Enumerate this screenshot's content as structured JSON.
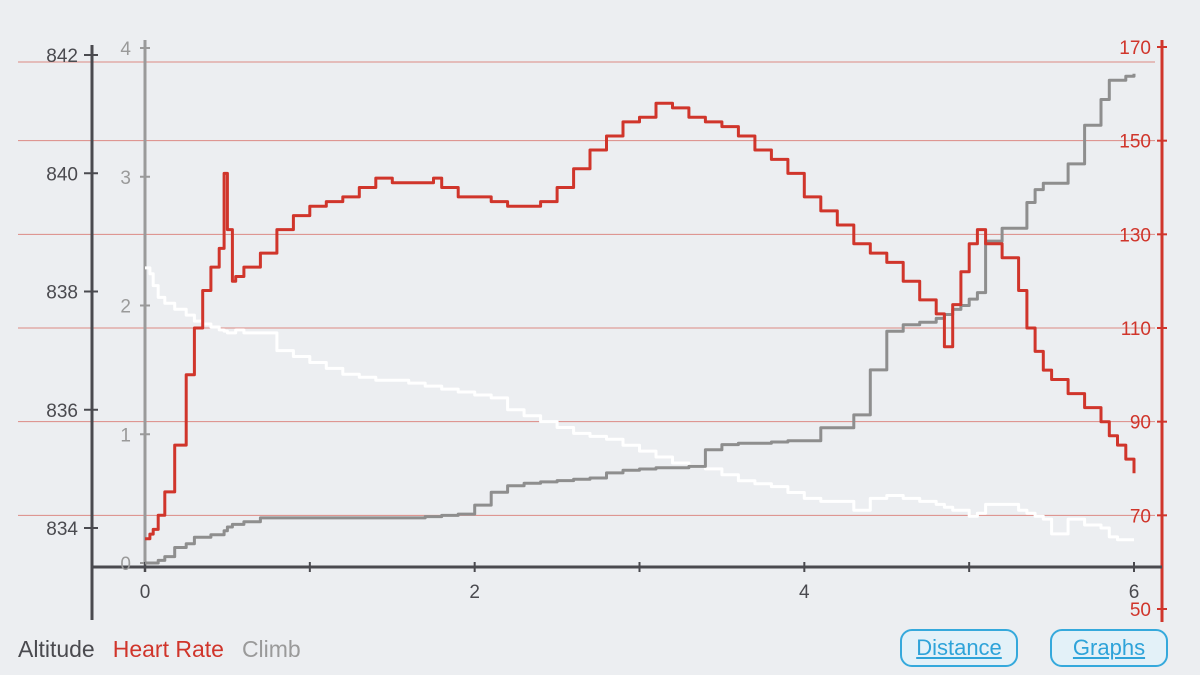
{
  "legend": {
    "altitude": "Altitude",
    "heart_rate": "Heart Rate",
    "climb": "Climb"
  },
  "buttons": {
    "distance": "Distance",
    "graphs": "Graphs"
  },
  "colors": {
    "background": "#eceef1",
    "altitude": "#ffffff",
    "heart_rate": "#d0352b",
    "climb": "#8e8e8e",
    "axis_left": "#4a4a4f",
    "axis_climb": "#9a9a9a",
    "grid": "#dc8a84",
    "button": "#2ea3d9"
  },
  "chart_data": {
    "type": "line",
    "x": [
      0,
      0.03,
      0.05,
      0.08,
      0.12,
      0.18,
      0.25,
      0.3,
      0.35,
      0.4,
      0.45,
      0.48,
      0.5,
      0.53,
      0.55,
      0.6,
      0.7,
      0.8,
      0.9,
      1.0,
      1.1,
      1.2,
      1.3,
      1.4,
      1.5,
      1.6,
      1.7,
      1.75,
      1.8,
      1.9,
      2.0,
      2.1,
      2.2,
      2.3,
      2.4,
      2.5,
      2.6,
      2.7,
      2.8,
      2.9,
      3.0,
      3.1,
      3.2,
      3.3,
      3.4,
      3.5,
      3.6,
      3.7,
      3.8,
      3.9,
      4.0,
      4.1,
      4.2,
      4.3,
      4.4,
      4.5,
      4.6,
      4.7,
      4.8,
      4.85,
      4.9,
      4.95,
      5.0,
      5.05,
      5.1,
      5.2,
      5.3,
      5.35,
      5.4,
      5.45,
      5.5,
      5.6,
      5.7,
      5.8,
      5.85,
      5.9,
      5.95,
      6.0
    ],
    "xlim": [
      0,
      6
    ],
    "x_ticks": [
      "0",
      "2",
      "4",
      "6"
    ],
    "series": [
      {
        "name": "Altitude",
        "axis": "left",
        "ylim": [
          833,
          842.3
        ],
        "y_ticks": [
          "834",
          "836",
          "838",
          "840",
          "842"
        ],
        "values": [
          838.4,
          838.3,
          838.1,
          837.9,
          837.8,
          837.7,
          837.6,
          837.5,
          837.45,
          837.4,
          837.35,
          837.33,
          837.3,
          837.3,
          837.35,
          837.3,
          837.3,
          837.0,
          836.9,
          836.8,
          836.7,
          836.6,
          836.55,
          836.5,
          836.5,
          836.45,
          836.4,
          836.4,
          836.35,
          836.3,
          836.25,
          836.2,
          836.0,
          835.9,
          835.8,
          835.7,
          835.6,
          835.55,
          835.5,
          835.4,
          835.3,
          835.2,
          835.1,
          835.05,
          835.0,
          834.9,
          834.8,
          834.75,
          834.7,
          834.6,
          834.5,
          834.45,
          834.45,
          834.3,
          834.5,
          834.55,
          834.5,
          834.45,
          834.4,
          834.35,
          834.3,
          834.3,
          834.2,
          834.25,
          834.4,
          834.4,
          834.3,
          834.25,
          834.2,
          834.15,
          833.9,
          834.15,
          834.05,
          834.0,
          833.85,
          833.8,
          833.8,
          833.8
        ]
      },
      {
        "name": "Heart Rate",
        "axis": "right",
        "ylim": [
          50,
          172
        ],
        "y_ticks": [
          "50",
          "70",
          "90",
          "110",
          "130",
          "150",
          "170"
        ],
        "values": [
          65,
          66,
          67,
          70,
          75,
          85,
          100,
          110,
          118,
          123,
          127,
          143,
          131,
          120,
          121,
          123,
          126,
          131,
          134,
          136,
          137,
          138,
          140,
          142,
          141,
          141,
          141,
          142,
          140,
          138,
          138,
          137,
          136,
          136,
          137,
          140,
          144,
          148,
          151,
          154,
          155,
          158,
          157,
          155,
          154,
          153,
          151,
          148,
          146,
          143,
          138,
          135,
          132,
          128,
          126,
          124,
          120,
          116,
          113,
          106,
          115,
          122,
          128,
          131,
          128,
          125,
          118,
          110,
          105,
          101,
          99,
          96,
          93,
          90,
          87,
          85,
          82,
          79
        ]
      },
      {
        "name": "Climb",
        "axis": "climb",
        "ylim": [
          0,
          4.1
        ],
        "y_ticks": [
          "0",
          "1",
          "2",
          "3",
          "4"
        ],
        "values": [
          0,
          0,
          0,
          0.02,
          0.05,
          0.12,
          0.15,
          0.2,
          0.2,
          0.22,
          0.22,
          0.25,
          0.28,
          0.3,
          0.3,
          0.32,
          0.35,
          0.35,
          0.35,
          0.35,
          0.35,
          0.35,
          0.35,
          0.35,
          0.35,
          0.35,
          0.36,
          0.36,
          0.37,
          0.38,
          0.45,
          0.55,
          0.6,
          0.62,
          0.63,
          0.64,
          0.65,
          0.66,
          0.7,
          0.72,
          0.73,
          0.74,
          0.74,
          0.75,
          0.88,
          0.92,
          0.93,
          0.93,
          0.94,
          0.95,
          0.95,
          1.05,
          1.05,
          1.15,
          1.5,
          1.8,
          1.85,
          1.87,
          1.9,
          1.93,
          1.97,
          2.0,
          2.05,
          2.1,
          2.5,
          2.6,
          2.6,
          2.8,
          2.9,
          2.95,
          2.95,
          3.1,
          3.4,
          3.6,
          3.75,
          3.75,
          3.78,
          3.8
        ]
      }
    ]
  }
}
